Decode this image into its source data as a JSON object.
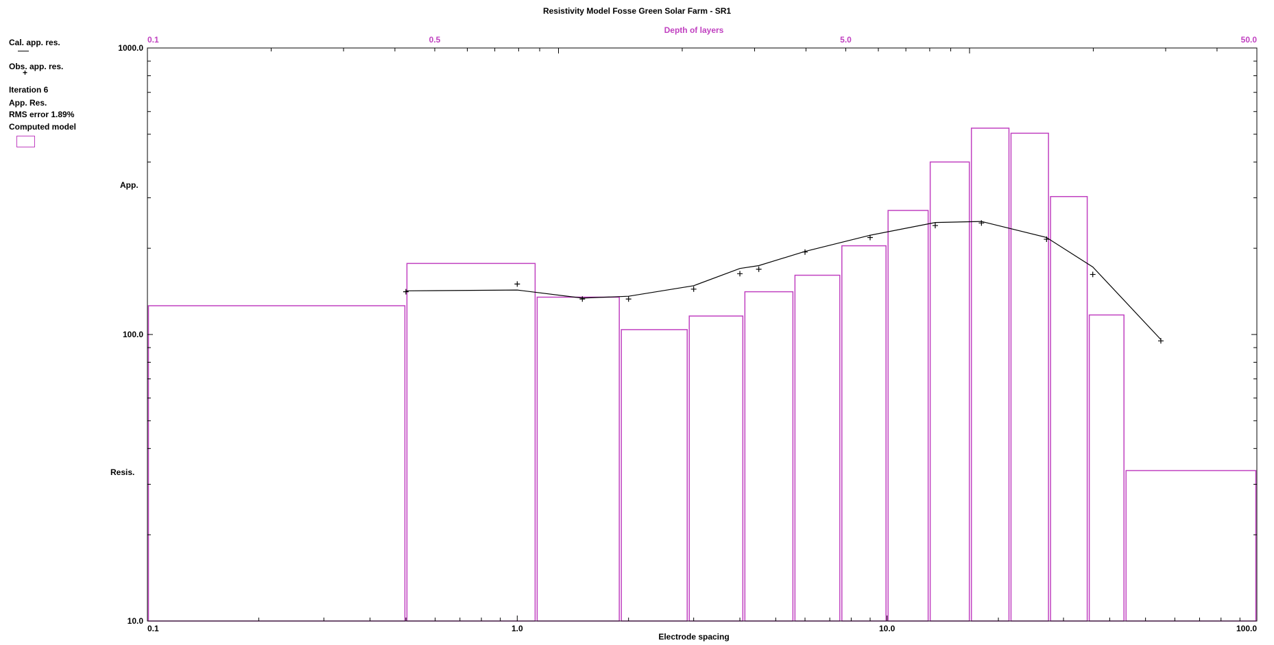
{
  "window": {
    "title": "Resistivity Model  Fosse Green Solar Farm - SR1"
  },
  "legend": {
    "cal_label": "Cal. app. res.",
    "obs_label": "Obs. app. res.",
    "iteration": "Iteration 6",
    "app_res": "App. Res.",
    "rms": "RMS error 1.89%",
    "model_label": "Computed model"
  },
  "colors": {
    "model": "#c040c0",
    "curve": "#000000",
    "axis": "#000000",
    "depth_axis": "#c040c0"
  },
  "chart_data": {
    "type": "line",
    "title": "Resistivity Model  Fosse Green Solar Farm - SR1",
    "xlabel": "Electrode spacing",
    "ylabel_lines": [
      "App.",
      "Resis."
    ],
    "x_scale": "log",
    "y_scale": "log",
    "xlim": [
      0.1,
      100.0
    ],
    "ylim": [
      10.0,
      1000.0
    ],
    "x_tick_labels": [
      "0.1",
      "1.0",
      "10.0",
      "100.0"
    ],
    "y_tick_labels": [
      "10.0",
      "100.0",
      "1000.0"
    ],
    "top_axis": {
      "label": "Depth of layers",
      "xlim": [
        0.1,
        50.0
      ],
      "tick_labels": [
        "0.1",
        "0.5",
        "5.0",
        "50.0"
      ],
      "tick_values": [
        0.1,
        0.5,
        5.0,
        50.0
      ]
    },
    "series": [
      {
        "name": "Cal. app. res.",
        "kind": "line",
        "x": [
          0.5,
          1.0,
          1.5,
          2.0,
          3.0,
          4.0,
          4.5,
          6.0,
          9.0,
          13.5,
          18.0,
          27.0,
          36.0,
          55.0
        ],
        "y": [
          142,
          143,
          134,
          136,
          148,
          170,
          174,
          195,
          222,
          246,
          248,
          218,
          172,
          96
        ]
      },
      {
        "name": "Obs. app. res.",
        "kind": "scatter",
        "x": [
          0.5,
          1.0,
          1.5,
          2.0,
          3.0,
          4.0,
          4.5,
          6.0,
          9.0,
          13.5,
          18.0,
          27.0,
          36.0,
          55.0
        ],
        "y": [
          141,
          150,
          133,
          133,
          144,
          163,
          169,
          194,
          218,
          240,
          245,
          215,
          162,
          95
        ]
      }
    ],
    "model": {
      "name": "Computed model",
      "kind": "step",
      "layers": [
        {
          "from": 0.1,
          "to": 0.5,
          "resistivity": 126
        },
        {
          "from": 0.5,
          "to": 1.125,
          "resistivity": 177
        },
        {
          "from": 1.125,
          "to": 1.9,
          "resistivity": 135
        },
        {
          "from": 1.9,
          "to": 2.9,
          "resistivity": 104
        },
        {
          "from": 2.9,
          "to": 4.1,
          "resistivity": 116
        },
        {
          "from": 4.1,
          "to": 5.6,
          "resistivity": 141
        },
        {
          "from": 5.6,
          "to": 7.5,
          "resistivity": 161
        },
        {
          "from": 7.5,
          "to": 10.0,
          "resistivity": 204
        },
        {
          "from": 10.0,
          "to": 13.0,
          "resistivity": 271
        },
        {
          "from": 13.0,
          "to": 16.8,
          "resistivity": 400
        },
        {
          "from": 16.8,
          "to": 21.5,
          "resistivity": 525
        },
        {
          "from": 21.5,
          "to": 27.5,
          "resistivity": 504
        },
        {
          "from": 27.5,
          "to": 35.0,
          "resistivity": 303
        },
        {
          "from": 35.0,
          "to": 44.0,
          "resistivity": 117
        },
        {
          "from": 44.0,
          "to": 100.0,
          "resistivity": 33.5
        }
      ]
    },
    "grid": false,
    "legend_position": "left"
  }
}
